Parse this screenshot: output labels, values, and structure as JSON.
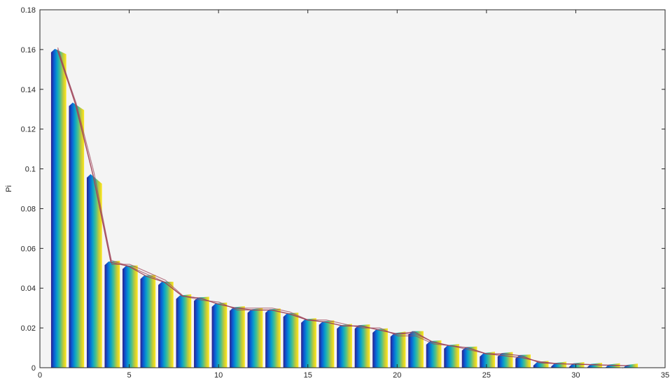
{
  "chart_data": {
    "type": "bar",
    "ylabel": "Pi",
    "xlabel": "",
    "xlim": [
      0,
      35
    ],
    "ylim": [
      0,
      0.18
    ],
    "xticks": [
      0,
      5,
      10,
      15,
      20,
      25,
      30,
      35
    ],
    "yticks": [
      0,
      0.02,
      0.04,
      0.06,
      0.08,
      0.1,
      0.12,
      0.14,
      0.16,
      0.18
    ],
    "ytick_labels": [
      "0",
      "0.02",
      "0.04",
      "0.06",
      "0.08",
      "0.1",
      "0.12",
      "0.14",
      "0.16",
      "0.18"
    ],
    "grid": false,
    "background": "#f4f4f4",
    "bar_gradient_colors": [
      "#2a1f8c",
      "#0a5fd6",
      "#0aa2c8",
      "#4cc08c",
      "#c4ca3a",
      "#ffe81a"
    ],
    "line_color": "#a0455a",
    "categories": [
      1,
      2,
      3,
      4,
      5,
      6,
      7,
      8,
      9,
      10,
      11,
      12,
      13,
      14,
      15,
      16,
      17,
      18,
      19,
      20,
      21,
      22,
      23,
      24,
      25,
      26,
      27,
      28,
      29,
      30,
      31,
      32,
      33
    ],
    "values": [
      0.16,
      0.133,
      0.097,
      0.053,
      0.051,
      0.046,
      0.043,
      0.036,
      0.035,
      0.032,
      0.03,
      0.029,
      0.029,
      0.027,
      0.024,
      0.023,
      0.021,
      0.021,
      0.019,
      0.017,
      0.018,
      0.013,
      0.011,
      0.01,
      0.007,
      0.007,
      0.006,
      0.0025,
      0.002,
      0.0018,
      0.0015,
      0.0012,
      0.001
    ],
    "series": [
      {
        "values": [
          0.161,
          0.133,
          0.096,
          0.054,
          0.051,
          0.047,
          0.043,
          0.036,
          0.035,
          0.032,
          0.03,
          0.03,
          0.03,
          0.028,
          0.024,
          0.023,
          0.021,
          0.021,
          0.019,
          0.017,
          0.017,
          0.013,
          0.011,
          0.01,
          0.007,
          0.006,
          0.005,
          0.003,
          0.002,
          0.0018,
          0.0015,
          0.0012,
          0.001
        ]
      },
      {
        "values": [
          0.159,
          0.133,
          0.098,
          0.052,
          0.052,
          0.048,
          0.044,
          0.036,
          0.034,
          0.033,
          0.029,
          0.029,
          0.029,
          0.027,
          0.024,
          0.024,
          0.022,
          0.02,
          0.02,
          0.016,
          0.016,
          0.012,
          0.011,
          0.009,
          0.007,
          0.006,
          0.005,
          0.003,
          0.002,
          0.0018,
          0.0015,
          0.0012,
          0.001
        ]
      }
    ]
  }
}
